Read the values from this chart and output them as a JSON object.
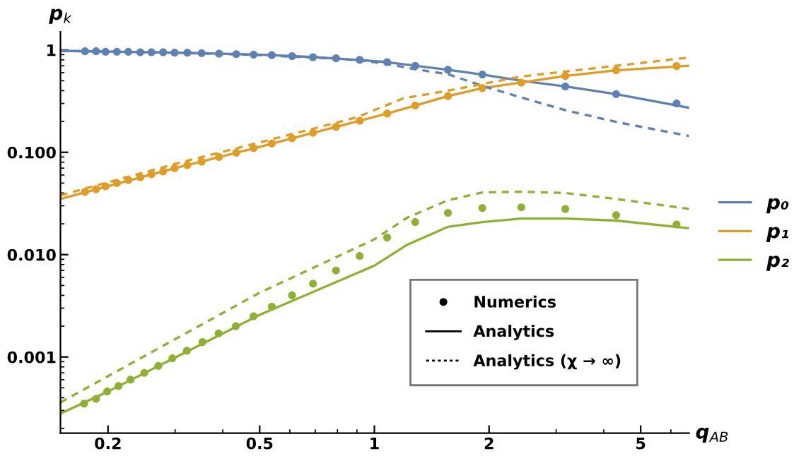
{
  "chart_data": {
    "type": "scatter",
    "xlabel": "q$_{AB}$",
    "ylabel": "p$_{k}$",
    "log": "xy",
    "xlim": [
      0.15,
      6.7
    ],
    "ylim": [
      0.00018,
      1.5
    ],
    "xticks": [
      0.2,
      0.5,
      1,
      2,
      5
    ],
    "yticks": [
      1,
      {
        "value": 0.1,
        "label": "0.100"
      },
      {
        "value": 0.01,
        "label": "0.010"
      },
      {
        "value": 0.001,
        "label": "0.001"
      }
    ],
    "grid": false,
    "legend": "right",
    "annotations": [
      "Numerics",
      "Analytics",
      "Analytics (χ → ∞)"
    ],
    "series": [
      {
        "marker": "circle",
        "color": "#5e81b5",
        "x": [
          0.174,
          0.186,
          0.197,
          0.211,
          0.226,
          0.243,
          0.26,
          0.279,
          0.299,
          0.323,
          0.352,
          0.391,
          0.434,
          0.482,
          0.538,
          0.608,
          0.69,
          0.793,
          0.915,
          1.08,
          1.28,
          1.56,
          1.92,
          2.43,
          3.17,
          4.31,
          6.21
        ],
        "values": [
          0.97,
          0.97,
          0.96,
          0.96,
          0.96,
          0.95,
          0.95,
          0.95,
          0.94,
          0.94,
          0.93,
          0.92,
          0.91,
          0.9,
          0.89,
          0.87,
          0.85,
          0.83,
          0.8,
          0.76,
          0.7,
          0.64,
          0.575,
          null,
          0.44,
          0.37,
          0.3
        ]
      },
      {
        "marker": "circle",
        "color": "#e19c24",
        "x": [
          0.174,
          0.186,
          0.197,
          0.211,
          0.226,
          0.243,
          0.26,
          0.279,
          0.299,
          0.323,
          0.352,
          0.391,
          0.434,
          0.482,
          0.538,
          0.608,
          0.69,
          0.793,
          0.915,
          1.08,
          1.28,
          1.56,
          1.92,
          2.43,
          3.17,
          4.31,
          6.21
        ],
        "values": [
          0.041,
          0.0435,
          0.0465,
          0.05,
          0.0535,
          0.057,
          0.061,
          0.065,
          0.07,
          0.075,
          0.081,
          0.09,
          0.099,
          0.11,
          0.122,
          0.137,
          0.155,
          0.177,
          0.203,
          0.239,
          0.286,
          0.354,
          0.424,
          0.48,
          0.557,
          0.633,
          0.696
        ]
      },
      {
        "marker": "circle",
        "color": "#8fb131",
        "x": [
          0.173,
          0.186,
          0.199,
          0.213,
          0.229,
          0.249,
          0.271,
          0.295,
          0.322,
          0.354,
          0.39,
          0.433,
          0.482,
          0.538,
          0.608,
          0.69,
          0.793,
          0.915,
          1.08,
          1.28,
          1.56,
          1.92,
          2.43,
          3.17,
          4.31,
          6.21
        ],
        "values": [
          0.00035,
          0.00039,
          0.00046,
          0.00052,
          0.0006,
          0.0007,
          0.00082,
          0.00097,
          0.00115,
          0.0014,
          0.0017,
          0.002,
          0.0025,
          0.0031,
          0.004,
          0.0052,
          0.007,
          0.0097,
          0.0147,
          0.0208,
          0.0256,
          0.0285,
          0.029,
          0.0279,
          0.0243,
          0.0197
        ]
      },
      {
        "type": "line",
        "line_style": "solid",
        "name": "p₀",
        "color": "#5e81b5",
        "x": [
          0.15,
          0.3,
          0.5,
          0.7,
          0.9,
          1.08,
          1.28,
          1.56,
          1.92,
          2.43,
          3.17,
          4.31,
          6.7
        ],
        "values": [
          0.98,
          0.94,
          0.9,
          0.85,
          0.8,
          0.76,
          0.7,
          0.64,
          0.575,
          0.5,
          0.44,
          0.37,
          0.272
        ]
      },
      {
        "type": "line",
        "line_style": "solid",
        "name": "p₁",
        "color": "#e19c24",
        "x": [
          0.15,
          0.3,
          0.5,
          0.7,
          0.9,
          1.08,
          1.28,
          1.56,
          1.92,
          2.43,
          3.17,
          4.31,
          6.7
        ],
        "values": [
          0.035,
          0.07,
          0.113,
          0.157,
          0.2,
          0.239,
          0.286,
          0.354,
          0.424,
          0.48,
          0.557,
          0.633,
          0.7
        ]
      },
      {
        "type": "line",
        "line_style": "solid",
        "name": "p₂",
        "color": "#8fb131",
        "x": [
          0.15,
          0.2,
          0.5,
          1,
          1.22,
          1.56,
          1.92,
          2.43,
          3.17,
          4.31,
          6.7
        ],
        "values": [
          0.00028,
          0.00046,
          0.00258,
          0.0078,
          0.0125,
          0.0187,
          0.0208,
          0.0225,
          0.0225,
          0.0215,
          0.0181
        ]
      },
      {
        "type": "line",
        "line_style": "dashed",
        "color": "#5e81b5",
        "x": [
          0.15,
          0.3,
          0.5,
          0.793,
          0.915,
          1.08,
          1.28,
          1.56,
          1.92,
          2.43,
          3.17,
          4.31,
          6.7
        ],
        "values": [
          0.98,
          0.94,
          0.89,
          0.82,
          0.79,
          0.73,
          0.647,
          0.58,
          0.446,
          0.343,
          0.258,
          0.198,
          0.144
        ]
      },
      {
        "type": "line",
        "line_style": "dashed",
        "color": "#e19c24",
        "x": [
          0.15,
          0.3,
          0.5,
          0.7,
          0.9,
          1.19,
          1.56,
          2.43,
          6.7
        ],
        "values": [
          0.038,
          0.077,
          0.125,
          0.172,
          0.22,
          0.336,
          0.4,
          0.55,
          0.843
        ]
      },
      {
        "type": "line",
        "line_style": "dashed",
        "color": "#8fb131",
        "x": [
          0.15,
          0.2,
          0.5,
          1,
          1.22,
          1.56,
          1.92,
          2.43,
          3.17,
          4.31,
          6.7
        ],
        "values": [
          0.00036,
          0.00065,
          0.00425,
          0.0141,
          0.023,
          0.034,
          0.0405,
          0.0412,
          0.04,
          0.035,
          0.028
        ]
      }
    ]
  }
}
